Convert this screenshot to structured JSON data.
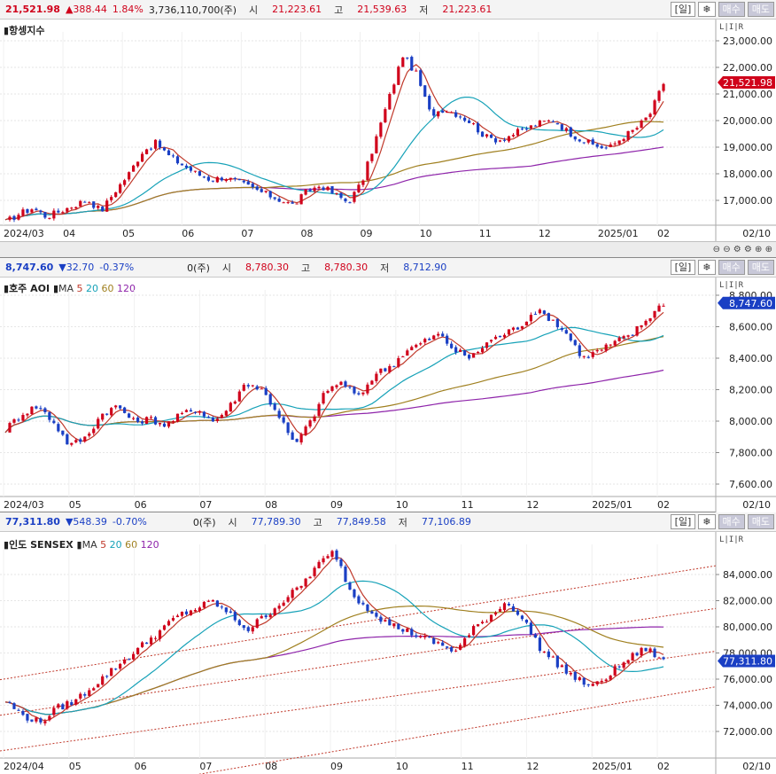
{
  "panels": [
    {
      "id": "hsi",
      "top": {
        "price": "21,521.98",
        "change": "▲388.44",
        "pct": "1.84%",
        "volume": "3,736,110,700(주)",
        "open_label": "시",
        "open": "21,223.61",
        "high_label": "고",
        "high": "21,539.63",
        "low_label": "저",
        "low": "21,223.61"
      },
      "name": "항셍지수",
      "ma_labels": [],
      "y_ticks": [
        "23,000.00",
        "22,000.00",
        "21,000.00",
        "20,000.00",
        "19,000.00",
        "18,000.00",
        "17,000.00"
      ],
      "last_label": "21,521.98",
      "x_ticks": [
        "2024/03",
        "04",
        "05",
        "06",
        "07",
        "08",
        "09",
        "10",
        "11",
        "12",
        "2025/01",
        "02"
      ],
      "date_label": "02/10"
    },
    {
      "id": "aoi",
      "top": {
        "price": "8,747.60",
        "change": "▼32.70",
        "pct": "-0.37%",
        "volume": "0(주)",
        "open_label": "시",
        "open": "8,780.30",
        "high_label": "고",
        "high": "8,780.30",
        "low_label": "저",
        "low": "8,712.90"
      },
      "name": "호주 AOI",
      "ma_labels": [
        "MA",
        "5",
        "20",
        "60",
        "120"
      ],
      "y_ticks": [
        "8,800.00",
        "8,600.00",
        "8,400.00",
        "8,200.00",
        "8,000.00",
        "7,800.00",
        "7,600.00"
      ],
      "last_label": "8,747.60",
      "x_ticks": [
        "2024/03",
        "05",
        "06",
        "07",
        "08",
        "09",
        "10",
        "11",
        "12",
        "2025/01",
        "02"
      ],
      "date_label": "02/10"
    },
    {
      "id": "sensex",
      "top": {
        "price": "77,311.80",
        "change": "▼548.39",
        "pct": "-0.70%",
        "volume": "0(주)",
        "open_label": "시",
        "open": "77,789.30",
        "high_label": "고",
        "high": "77,849.58",
        "low_label": "저",
        "low": "77,106.89"
      },
      "name": "인도 SENSEX",
      "ma_labels": [
        "MA",
        "5",
        "20",
        "60",
        "120"
      ],
      "y_ticks": [
        "84,000.00",
        "82,000.00",
        "80,000.00",
        "78,000.00",
        "76,000.00",
        "74,000.00",
        "72,000.00"
      ],
      "last_label": "77,311.80",
      "x_ticks": [
        "2024/04",
        "05",
        "06",
        "07",
        "08",
        "09",
        "10",
        "11",
        "12",
        "2025/01",
        "02"
      ],
      "date_label": "02/10"
    }
  ],
  "buttons": {
    "period": "[일]",
    "buy": "매수",
    "sell": "매도"
  },
  "colors": {
    "up": "#d0021b",
    "down": "#1a3fc4",
    "ma5": "#c0392b",
    "ma20": "#17a2b8",
    "ma60": "#a08020",
    "ma120": "#8e24aa"
  },
  "chart_data": [
    {
      "type": "candlestick",
      "title": "항셍지수",
      "ylim": [
        16500,
        23300
      ],
      "x_ticks": [
        "2024/03",
        "04",
        "05",
        "06",
        "07",
        "08",
        "09",
        "10",
        "11",
        "12",
        "2025/01",
        "02"
      ],
      "close": [
        16600,
        16900,
        17100,
        16800,
        17000,
        17200,
        17400,
        17000,
        17700,
        18300,
        19100,
        19400,
        18900,
        18600,
        18300,
        18100,
        18200,
        18000,
        17800,
        17600,
        17400,
        17200,
        17700,
        17900,
        17600,
        17300,
        18000,
        19500,
        21000,
        22500,
        21800,
        20400,
        20600,
        20400,
        20100,
        19600,
        19500,
        19700,
        19900,
        20100,
        20200,
        19800,
        19500,
        19300,
        19200,
        19600,
        19900,
        20400,
        21500
      ]
    },
    {
      "type": "candlestick",
      "title": "호주 AOI",
      "ylim": [
        7530,
        8830
      ],
      "x_ticks": [
        "2024/03",
        "05",
        "06",
        "07",
        "08",
        "09",
        "10",
        "11",
        "12",
        "2025/01",
        "02"
      ],
      "close": [
        7950,
        8050,
        8100,
        8000,
        7850,
        7900,
        8050,
        8100,
        8000,
        8020,
        7980,
        8050,
        8080,
        8000,
        8100,
        8250,
        8200,
        8050,
        7850,
        8000,
        8200,
        8250,
        8150,
        8300,
        8350,
        8450,
        8500,
        8550,
        8450,
        8400,
        8500,
        8550,
        8600,
        8700,
        8650,
        8550,
        8400,
        8450,
        8500,
        8550,
        8650,
        8750
      ]
    },
    {
      "type": "candlestick",
      "title": "인도 SENSEX",
      "ylim": [
        70500,
        85500
      ],
      "x_ticks": [
        "2024/04",
        "05",
        "06",
        "07",
        "08",
        "09",
        "10",
        "11",
        "12",
        "2025/01",
        "02"
      ],
      "close": [
        74500,
        73500,
        73000,
        74000,
        74500,
        75500,
        76500,
        77500,
        78500,
        79500,
        80500,
        81000,
        81500,
        80500,
        79500,
        80500,
        81500,
        82500,
        84000,
        85000,
        82000,
        81000,
        80000,
        79500,
        79000,
        78500,
        78000,
        79500,
        80500,
        81500,
        80000,
        78000,
        77000,
        76000,
        75500,
        76500,
        77500,
        78200,
        77300
      ]
    }
  ]
}
